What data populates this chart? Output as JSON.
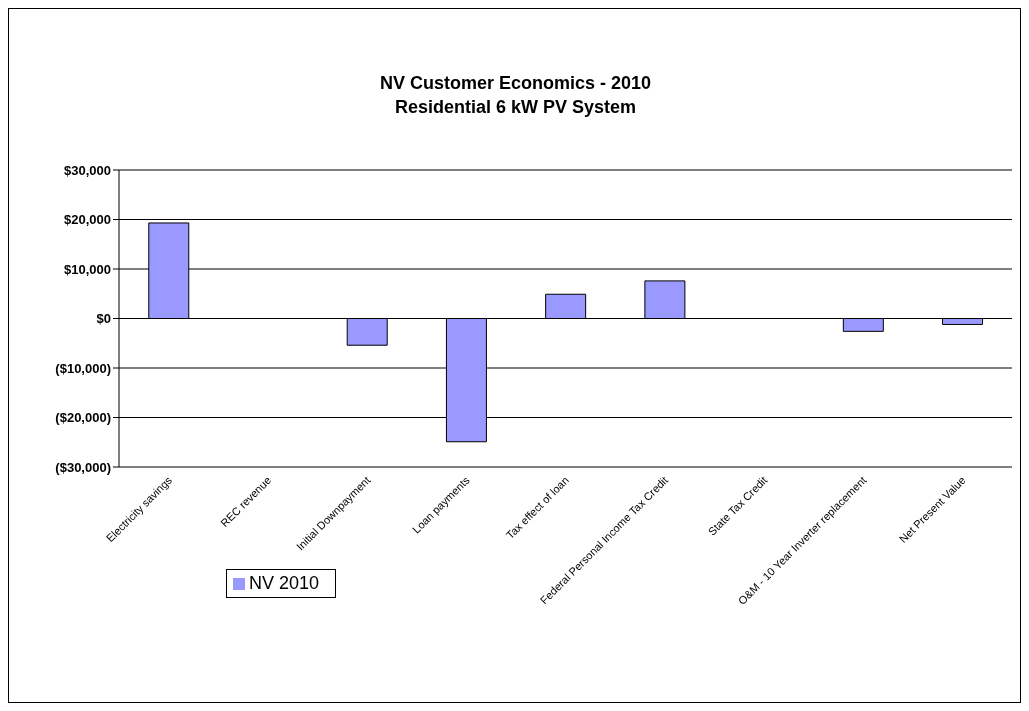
{
  "chart_data": {
    "type": "bar",
    "title": "NV Customer Economics - 2010",
    "subtitle": "Residential 6 kW PV System",
    "categories": [
      "Electricity savings",
      "REC revenue",
      "Initial Downpayment",
      "Loan payments",
      "Tax effect of loan",
      "Federal Personal Income Tax Credit",
      "State Tax Credit",
      "O&M - 10 Year Inverter replacement",
      "Net Present Value"
    ],
    "series": [
      {
        "name": "NV 2010",
        "color": "#9999ff",
        "values": [
          19300,
          0,
          -5400,
          -24900,
          4900,
          7600,
          0,
          -2600,
          -1200
        ]
      }
    ],
    "ylim": [
      -30000,
      30000
    ],
    "yticks": [
      {
        "value": -30000,
        "label": "($30,000)"
      },
      {
        "value": -20000,
        "label": "($20,000)"
      },
      {
        "value": -10000,
        "label": "($10,000)"
      },
      {
        "value": 0,
        "label": "$0"
      },
      {
        "value": 10000,
        "label": "$10,000"
      },
      {
        "value": 20000,
        "label": "$20,000"
      },
      {
        "value": 30000,
        "label": "$30,000"
      }
    ],
    "grid": "y",
    "legend": "bottom left"
  }
}
